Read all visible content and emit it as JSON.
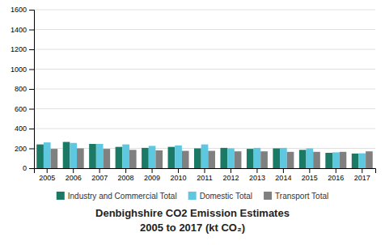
{
  "chart_data": {
    "type": "bar",
    "title": "Denbighshire CO2 Emission Estimates\n2005 to 2017 (kt CO₂)",
    "categories": [
      "2005",
      "2006",
      "2007",
      "2008",
      "2009",
      "2010",
      "2011",
      "2012",
      "2013",
      "2014",
      "2015",
      "2016",
      "2017"
    ],
    "series": [
      {
        "name": "Industry and Commercial Total",
        "color": "#1a7a65",
        "values": [
          240,
          265,
          245,
          215,
          205,
          215,
          200,
          205,
          195,
          200,
          185,
          155,
          148
        ]
      },
      {
        "name": "Domestic Total",
        "color": "#5ec8e0",
        "values": [
          260,
          255,
          245,
          240,
          225,
          230,
          240,
          200,
          205,
          205,
          200,
          160,
          150
        ]
      },
      {
        "name": "Transport Total",
        "color": "#808080",
        "values": [
          195,
          200,
          195,
          185,
          180,
          175,
          175,
          170,
          170,
          165,
          165,
          165,
          170
        ]
      }
    ],
    "ylim": [
      0,
      1600
    ],
    "yticks": [
      0,
      200,
      400,
      600,
      800,
      1000,
      1200,
      1400,
      1600
    ],
    "grid": true,
    "legend": "bottom"
  }
}
